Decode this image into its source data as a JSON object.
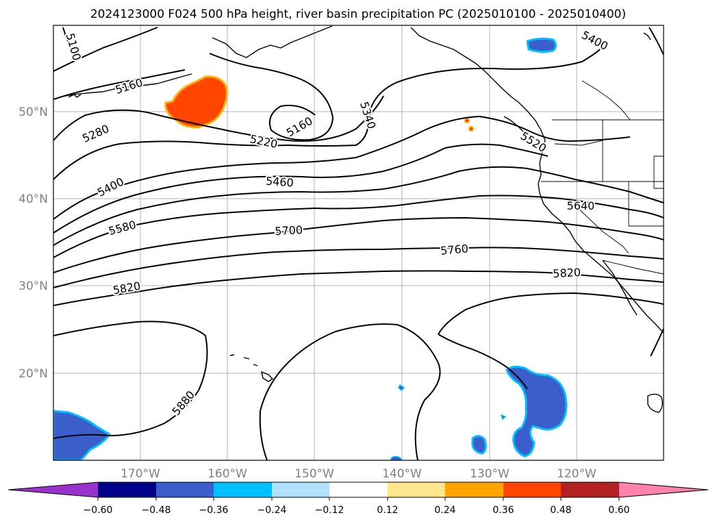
{
  "title": "2024123000 F024 500 hPa height, river basin precipitation PC (2025010100 - 2025010400)",
  "map": {
    "lat_labels": [
      "50°N",
      "40°N",
      "30°N",
      "20°N"
    ],
    "lon_labels": [
      "170°W",
      "160°W",
      "150°W",
      "140°W",
      "130°W",
      "120°W"
    ],
    "contour_labels": [
      "5100",
      "5160",
      "5160",
      "5220",
      "5280",
      "5340",
      "5400",
      "5400",
      "5460",
      "5520",
      "5580",
      "5640",
      "5700",
      "5760",
      "5820",
      "5820",
      "5880"
    ],
    "colors": {
      "negative_fill": "#3a5fcd",
      "negative_edge": "#00bfff",
      "positive_fill": "#ff4500",
      "positive_edge": "#ffb000"
    }
  },
  "colorbar": {
    "ticks": [
      "−0.60",
      "−0.48",
      "−0.36",
      "−0.24",
      "−0.12",
      "0.12",
      "0.24",
      "0.36",
      "0.48",
      "0.60"
    ],
    "colors": [
      "#9932cc",
      "#00008b",
      "#3a5fcd",
      "#00bfff",
      "#b0e2ff",
      "#ffffff",
      "#ffe68c",
      "#ffa500",
      "#ff4500",
      "#b22222",
      "#ff82ab"
    ]
  }
}
